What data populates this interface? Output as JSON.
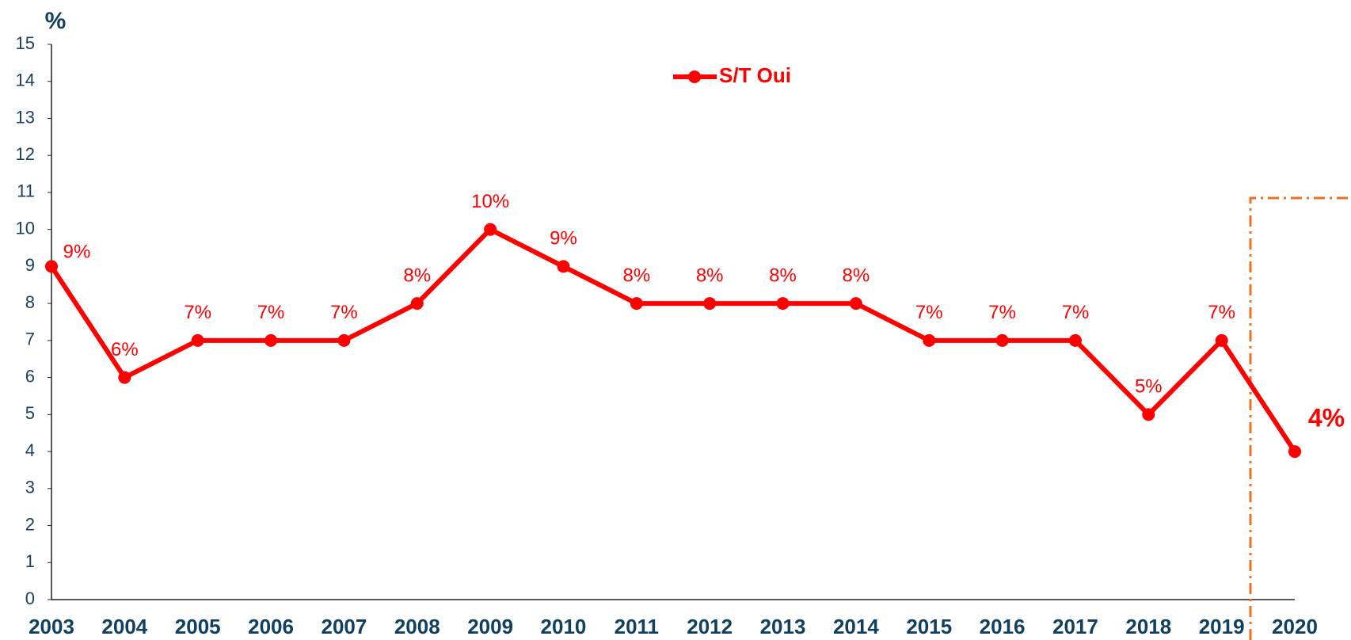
{
  "chart_data": {
    "type": "line",
    "y_label": "%",
    "categories": [
      "2003",
      "2004",
      "2005",
      "2006",
      "2007",
      "2008",
      "2009",
      "2010",
      "2011",
      "2012",
      "2013",
      "2014",
      "2015",
      "2016",
      "2017",
      "2018",
      "2019",
      "2020"
    ],
    "series": [
      {
        "name": "S/T Oui",
        "color": "#ff0000",
        "values": [
          9,
          6,
          7,
          7,
          7,
          8,
          10,
          9,
          8,
          8,
          8,
          8,
          7,
          7,
          7,
          5,
          7,
          4
        ],
        "value_labels": [
          "9%",
          "6%",
          "7%",
          "7%",
          "7%",
          "8%",
          "10%",
          "9%",
          "8%",
          "8%",
          "8%",
          "8%",
          "7%",
          "7%",
          "7%",
          "5%",
          "7%",
          "4%"
        ]
      }
    ],
    "ylim": [
      0,
      15
    ],
    "yticks": [
      0,
      1,
      2,
      3,
      4,
      5,
      6,
      7,
      8,
      9,
      10,
      11,
      12,
      13,
      14,
      15
    ],
    "legend": "top"
  }
}
